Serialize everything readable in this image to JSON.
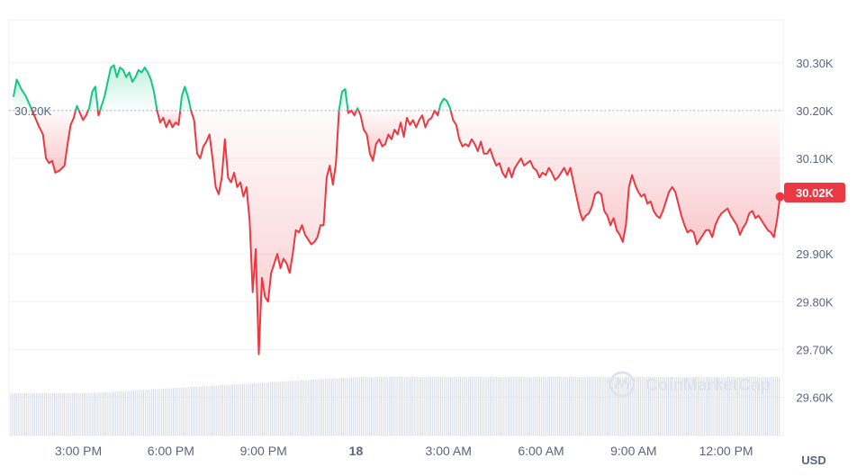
{
  "chart_data": {
    "type": "area",
    "unit_label": "USD",
    "watermark": "CoinMarketCap",
    "reference_label": "30.20K",
    "reference_value": 30200,
    "current_value": 30020,
    "current_label": "30.02K",
    "ylim": [
      29520,
      30390
    ],
    "y_ticks": [
      {
        "value": 30300,
        "label": "30.30K"
      },
      {
        "value": 30200,
        "label": "30.20K"
      },
      {
        "value": 30100,
        "label": "30.10K"
      },
      {
        "value": 29900,
        "label": "29.90K"
      },
      {
        "value": 29800,
        "label": "29.80K"
      },
      {
        "value": 29700,
        "label": "29.70K"
      },
      {
        "value": 29600,
        "label": "29.60K"
      }
    ],
    "xlim": [
      12.75,
      37.85
    ],
    "x_ticks": [
      {
        "value": 15,
        "label": "3:00 PM",
        "bold": false
      },
      {
        "value": 18,
        "label": "6:00 PM",
        "bold": false
      },
      {
        "value": 21,
        "label": "9:00 PM",
        "bold": false
      },
      {
        "value": 24,
        "label": "18",
        "bold": true
      },
      {
        "value": 27,
        "label": "3:00 AM",
        "bold": false
      },
      {
        "value": 30,
        "label": "6:00 AM",
        "bold": false
      },
      {
        "value": 33,
        "label": "9:00 AM",
        "bold": false
      },
      {
        "value": 36,
        "label": "12:00 PM",
        "bold": false
      }
    ],
    "colors": {
      "up": "#16c784",
      "down": "#ea3943",
      "volume": "#cfd6e4",
      "grid": "#eff2f5"
    },
    "series": [
      {
        "values": [
          [
            12.9,
            30230
          ],
          [
            13.0,
            30265
          ],
          [
            13.15,
            30245
          ],
          [
            13.3,
            30230
          ],
          [
            13.7,
            30170
          ],
          [
            13.85,
            30150
          ],
          [
            13.95,
            30100
          ],
          [
            14.05,
            30090
          ],
          [
            14.15,
            30095
          ],
          [
            14.25,
            30070
          ],
          [
            14.4,
            30075
          ],
          [
            14.55,
            30085
          ],
          [
            14.65,
            30130
          ],
          [
            14.75,
            30170
          ],
          [
            14.85,
            30185
          ],
          [
            14.95,
            30210
          ],
          [
            15.05,
            30195
          ],
          [
            15.15,
            30180
          ],
          [
            15.25,
            30190
          ],
          [
            15.35,
            30205
          ],
          [
            15.45,
            30240
          ],
          [
            15.55,
            30250
          ],
          [
            15.65,
            30190
          ],
          [
            15.75,
            30210
          ],
          [
            15.85,
            30230
          ],
          [
            15.95,
            30260
          ],
          [
            16.05,
            30290
          ],
          [
            16.15,
            30295
          ],
          [
            16.25,
            30270
          ],
          [
            16.35,
            30290
          ],
          [
            16.45,
            30285
          ],
          [
            16.55,
            30270
          ],
          [
            16.65,
            30280
          ],
          [
            16.75,
            30260
          ],
          [
            16.85,
            30270
          ],
          [
            16.95,
            30285
          ],
          [
            17.05,
            30280
          ],
          [
            17.15,
            30290
          ],
          [
            17.25,
            30280
          ],
          [
            17.35,
            30265
          ],
          [
            17.45,
            30240
          ],
          [
            17.55,
            30200
          ],
          [
            17.65,
            30175
          ],
          [
            17.75,
            30185
          ],
          [
            17.85,
            30165
          ],
          [
            17.95,
            30180
          ],
          [
            18.05,
            30165
          ],
          [
            18.15,
            30175
          ],
          [
            18.25,
            30170
          ],
          [
            18.35,
            30230
          ],
          [
            18.45,
            30250
          ],
          [
            18.55,
            30230
          ],
          [
            18.65,
            30200
          ],
          [
            18.75,
            30180
          ],
          [
            18.85,
            30110
          ],
          [
            18.95,
            30100
          ],
          [
            19.05,
            30125
          ],
          [
            19.15,
            30135
          ],
          [
            19.25,
            30150
          ],
          [
            19.35,
            30100
          ],
          [
            19.45,
            30040
          ],
          [
            19.55,
            30025
          ],
          [
            19.65,
            30060
          ],
          [
            19.75,
            30140
          ],
          [
            19.85,
            30060
          ],
          [
            19.95,
            30050
          ],
          [
            20.05,
            30070
          ],
          [
            20.15,
            30040
          ],
          [
            20.25,
            30050
          ],
          [
            20.35,
            30020
          ],
          [
            20.45,
            30040
          ],
          [
            20.55,
            29970
          ],
          [
            20.65,
            29820
          ],
          [
            20.75,
            29910
          ],
          [
            20.85,
            29690
          ],
          [
            20.95,
            29850
          ],
          [
            21.05,
            29810
          ],
          [
            21.15,
            29800
          ],
          [
            21.25,
            29860
          ],
          [
            21.35,
            29880
          ],
          [
            21.45,
            29900
          ],
          [
            21.55,
            29870
          ],
          [
            21.65,
            29890
          ],
          [
            21.75,
            29880
          ],
          [
            21.85,
            29860
          ],
          [
            21.95,
            29900
          ],
          [
            22.05,
            29950
          ],
          [
            22.15,
            29945
          ],
          [
            22.25,
            29960
          ],
          [
            22.35,
            29940
          ],
          [
            22.45,
            29930
          ],
          [
            22.55,
            29920
          ],
          [
            22.65,
            29925
          ],
          [
            22.75,
            29935
          ],
          [
            22.85,
            29960
          ],
          [
            22.95,
            29960
          ],
          [
            23.05,
            30060
          ],
          [
            23.15,
            30085
          ],
          [
            23.25,
            30045
          ],
          [
            23.35,
            30090
          ],
          [
            23.45,
            30200
          ],
          [
            23.55,
            30240
          ],
          [
            23.65,
            30245
          ],
          [
            23.75,
            30195
          ],
          [
            23.85,
            30200
          ],
          [
            23.95,
            30190
          ],
          [
            24.05,
            30205
          ],
          [
            24.15,
            30190
          ],
          [
            24.25,
            30160
          ],
          [
            24.35,
            30150
          ],
          [
            24.45,
            30110
          ],
          [
            24.55,
            30095
          ],
          [
            24.65,
            30130
          ],
          [
            24.75,
            30140
          ],
          [
            24.85,
            30125
          ],
          [
            24.95,
            30130
          ],
          [
            25.05,
            30150
          ],
          [
            25.15,
            30140
          ],
          [
            25.25,
            30160
          ],
          [
            25.35,
            30150
          ],
          [
            25.45,
            30175
          ],
          [
            25.55,
            30145
          ],
          [
            25.65,
            30185
          ],
          [
            25.75,
            30170
          ],
          [
            25.85,
            30180
          ],
          [
            25.95,
            30165
          ],
          [
            26.05,
            30180
          ],
          [
            26.15,
            30190
          ],
          [
            26.25,
            30165
          ],
          [
            26.35,
            30180
          ],
          [
            26.45,
            30185
          ],
          [
            26.55,
            30200
          ],
          [
            26.65,
            30190
          ],
          [
            26.75,
            30215
          ],
          [
            26.85,
            30225
          ],
          [
            26.95,
            30220
          ],
          [
            27.05,
            30205
          ],
          [
            27.15,
            30180
          ],
          [
            27.25,
            30170
          ],
          [
            27.35,
            30140
          ],
          [
            27.45,
            30125
          ],
          [
            27.55,
            30130
          ],
          [
            27.65,
            30125
          ],
          [
            27.75,
            30140
          ],
          [
            27.85,
            30130
          ],
          [
            27.95,
            30115
          ],
          [
            28.05,
            30135
          ],
          [
            28.15,
            30110
          ],
          [
            28.25,
            30110
          ],
          [
            28.35,
            30120
          ],
          [
            28.45,
            30100
          ],
          [
            28.55,
            30085
          ],
          [
            28.65,
            30090
          ],
          [
            28.75,
            30070
          ],
          [
            28.85,
            30060
          ],
          [
            28.95,
            30080
          ],
          [
            29.05,
            30060
          ],
          [
            29.15,
            30080
          ],
          [
            29.25,
            30090
          ],
          [
            29.35,
            30100
          ],
          [
            29.45,
            30085
          ],
          [
            29.55,
            30090
          ],
          [
            29.65,
            30095
          ],
          [
            29.75,
            30080
          ],
          [
            29.85,
            30075
          ],
          [
            29.95,
            30060
          ],
          [
            30.05,
            30070
          ],
          [
            30.15,
            30065
          ],
          [
            30.25,
            30080
          ],
          [
            30.35,
            30070
          ],
          [
            30.45,
            30055
          ],
          [
            30.55,
            30060
          ],
          [
            30.65,
            30070
          ],
          [
            30.75,
            30080
          ],
          [
            30.85,
            30065
          ],
          [
            30.95,
            30080
          ],
          [
            31.05,
            30050
          ],
          [
            31.15,
            30020
          ],
          [
            31.25,
            29990
          ],
          [
            31.35,
            29970
          ],
          [
            31.45,
            29980
          ],
          [
            31.55,
            29985
          ],
          [
            31.65,
            30000
          ],
          [
            31.75,
            30025
          ],
          [
            31.85,
            30030
          ],
          [
            31.95,
            30025
          ],
          [
            32.05,
            29990
          ],
          [
            32.15,
            29980
          ],
          [
            32.25,
            29960
          ],
          [
            32.35,
            29975
          ],
          [
            32.45,
            29950
          ],
          [
            32.55,
            29940
          ],
          [
            32.65,
            29925
          ],
          [
            32.75,
            29960
          ],
          [
            32.85,
            30040
          ],
          [
            32.95,
            30065
          ],
          [
            33.05,
            30045
          ],
          [
            33.15,
            30030
          ],
          [
            33.25,
            30020
          ],
          [
            33.35,
            30025
          ],
          [
            33.45,
            30005
          ],
          [
            33.55,
            30010
          ],
          [
            33.65,
            29990
          ],
          [
            33.75,
            29980
          ],
          [
            33.85,
            29975
          ],
          [
            33.95,
            29990
          ],
          [
            34.05,
            30010
          ],
          [
            34.15,
            30030
          ],
          [
            34.25,
            30040
          ],
          [
            34.35,
            30030
          ],
          [
            34.45,
            30005
          ],
          [
            34.55,
            29980
          ],
          [
            34.65,
            29960
          ],
          [
            34.75,
            29945
          ],
          [
            34.85,
            29950
          ],
          [
            34.95,
            29945
          ],
          [
            35.05,
            29920
          ],
          [
            35.15,
            29930
          ],
          [
            35.25,
            29940
          ],
          [
            35.35,
            29950
          ],
          [
            35.45,
            29950
          ],
          [
            35.55,
            29935
          ],
          [
            35.65,
            29960
          ],
          [
            35.75,
            29975
          ],
          [
            35.85,
            29985
          ],
          [
            35.95,
            29990
          ],
          [
            36.05,
            29995
          ],
          [
            36.15,
            29980
          ],
          [
            36.25,
            29970
          ],
          [
            36.35,
            29960
          ],
          [
            36.45,
            29940
          ],
          [
            36.55,
            29955
          ],
          [
            36.65,
            29965
          ],
          [
            36.75,
            29985
          ],
          [
            36.85,
            29990
          ],
          [
            36.95,
            29975
          ],
          [
            37.05,
            29980
          ],
          [
            37.15,
            29970
          ],
          [
            37.25,
            29960
          ],
          [
            37.35,
            29950
          ],
          [
            37.45,
            29945
          ],
          [
            37.55,
            29935
          ],
          [
            37.65,
            29970
          ],
          [
            37.75,
            30020
          ]
        ]
      }
    ]
  }
}
